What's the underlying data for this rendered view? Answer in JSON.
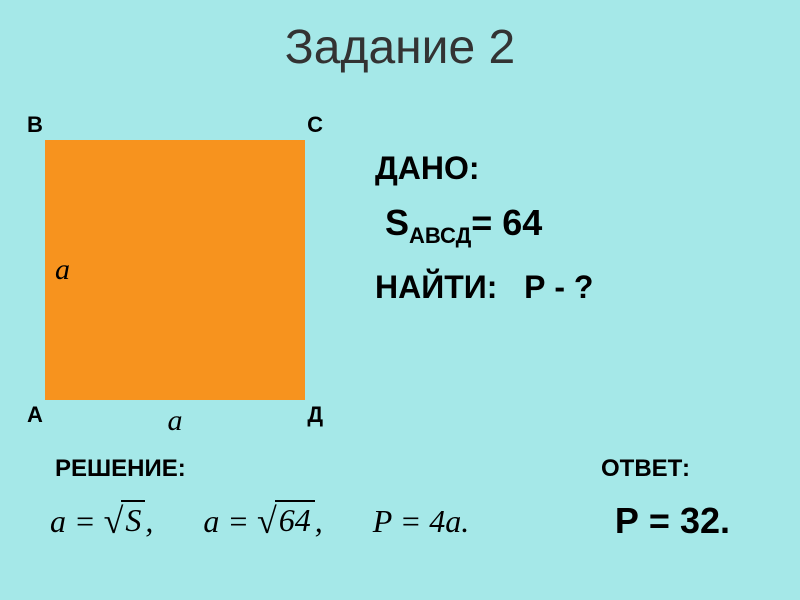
{
  "title": "Задание 2",
  "square": {
    "color": "#f7931e",
    "size": 260,
    "vertices": {
      "topLeft": "В",
      "topRight": "С",
      "bottomLeft": "А",
      "bottomRight": "Д"
    },
    "sideLabel": "a"
  },
  "given": {
    "label": "ДАНО:",
    "variable": "S",
    "subscript": "АВСД",
    "value": "= 64"
  },
  "find": {
    "label": "НАЙТИ:",
    "question": "Р - ?"
  },
  "solution": {
    "label": "РЕШЕНИЕ:",
    "formulas": {
      "f1_left": "a =",
      "f1_sqrt": "S",
      "f1_end": ",",
      "f2_left": "a =",
      "f2_sqrt": "64",
      "f2_end": ",",
      "f3": "P = 4a."
    }
  },
  "answer": {
    "label": "ОТВЕТ:",
    "value": "Р = 32."
  },
  "colors": {
    "background": "#a5e8e8",
    "square": "#f7931e",
    "text": "#000000"
  }
}
